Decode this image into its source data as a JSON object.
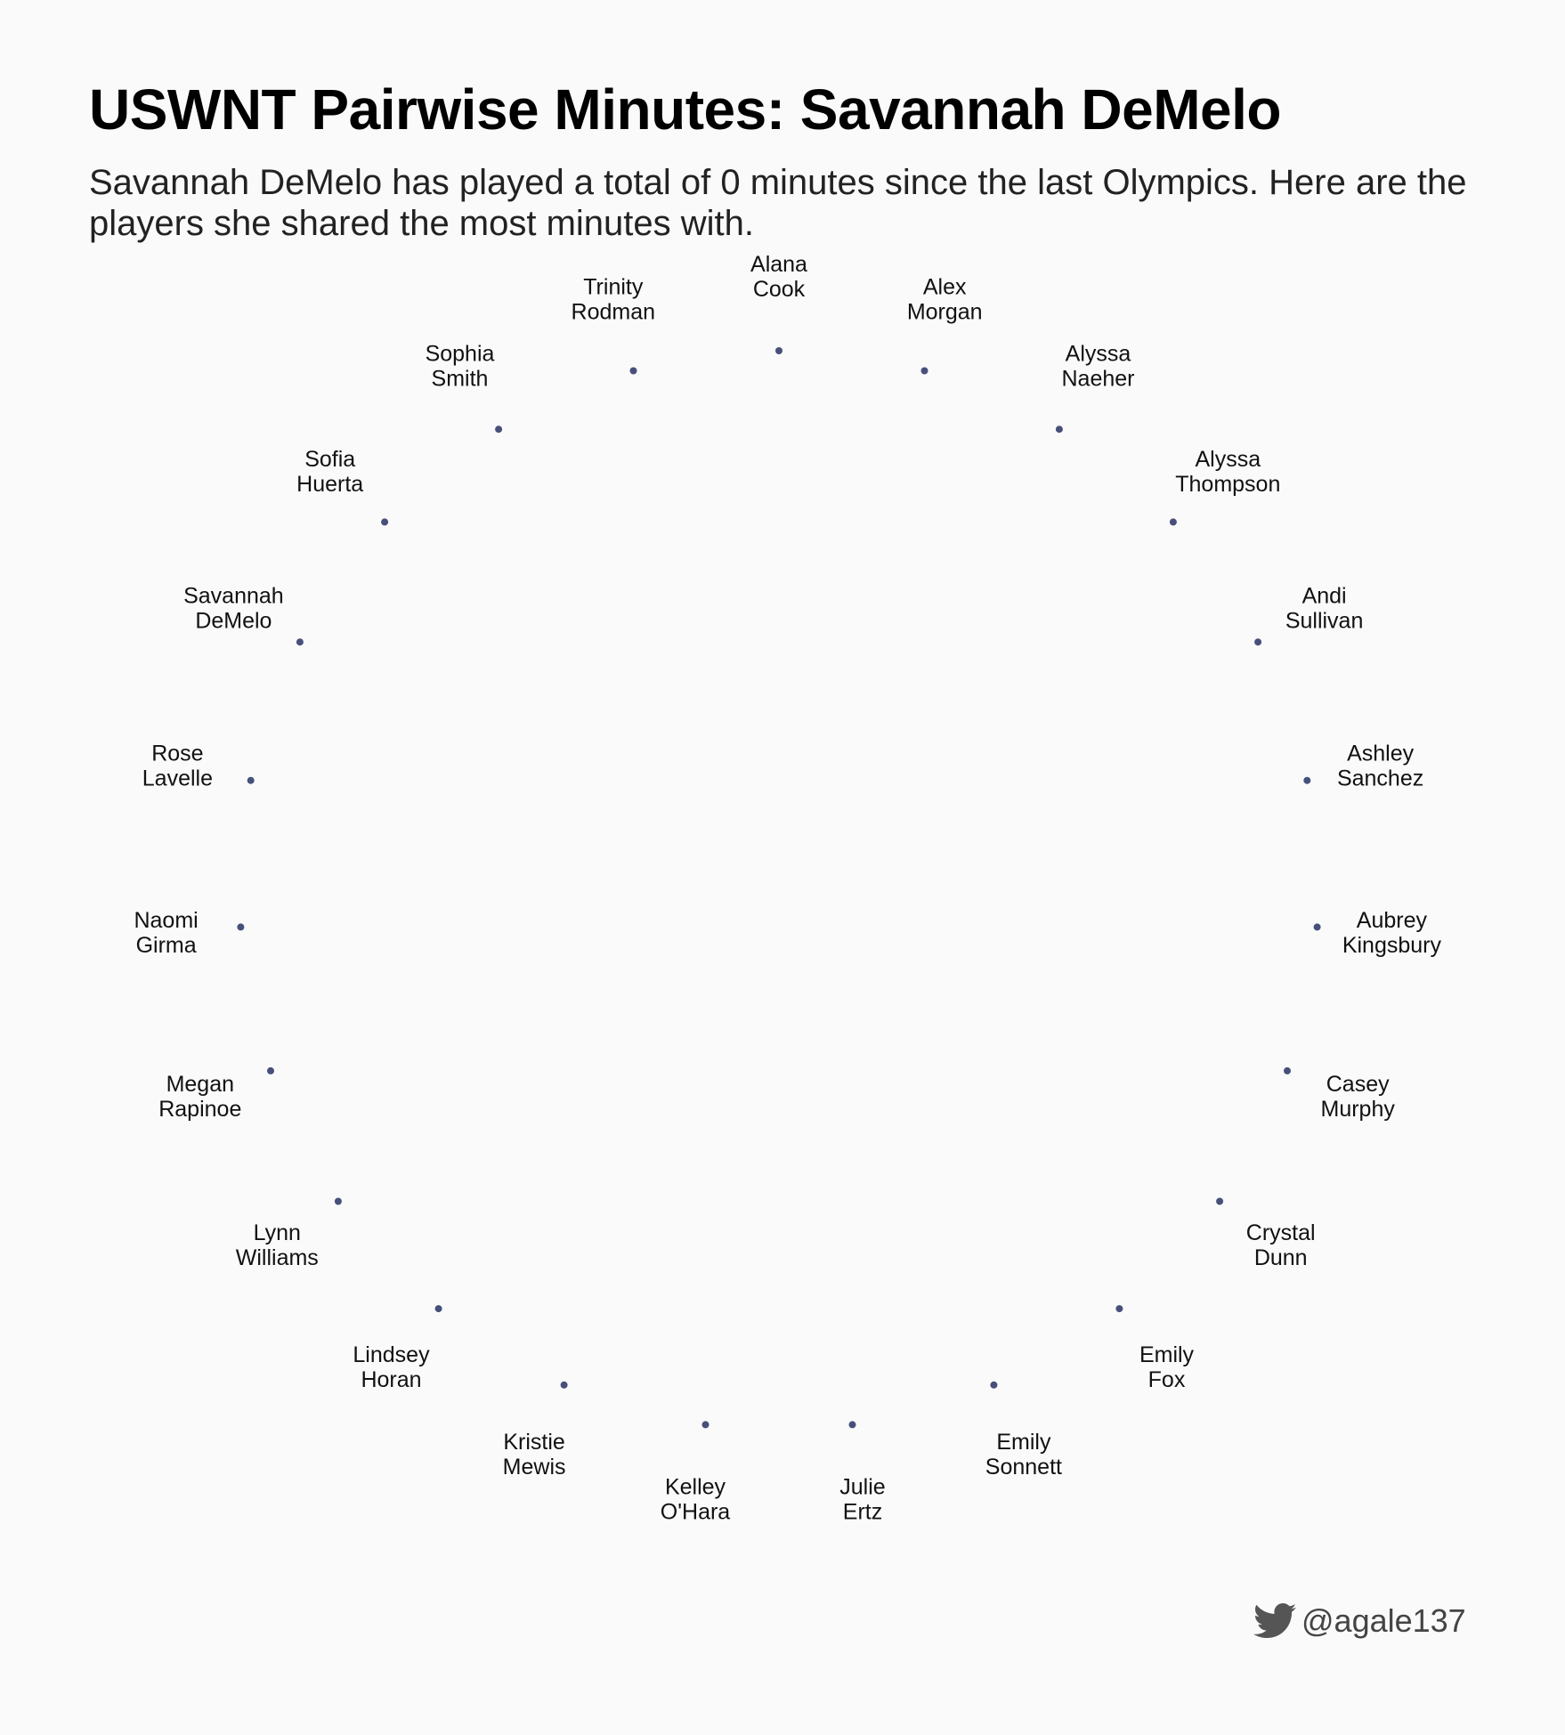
{
  "title": "USWNT Pairwise Minutes: Savannah DeMelo",
  "subtitle": "Savannah DeMelo has played a total of 0 minutes since the last Olympics. Here are the players she shared the most minutes with.",
  "credit": {
    "handle": "@agale137",
    "icon": "twitter-icon"
  },
  "colors": {
    "background": "#fafafa",
    "point": "#46507a",
    "text": "#111111",
    "credit": "#444444"
  },
  "chart_data": {
    "type": "scatter",
    "layout": "radial-network",
    "focus_player": "Savannah DeMelo",
    "total_minutes": 0,
    "connections_shown": 0,
    "nodes": [
      {
        "name": "Alana Cook",
        "line1": "Alana",
        "line2": "Cook"
      },
      {
        "name": "Alex Morgan",
        "line1": "Alex",
        "line2": "Morgan"
      },
      {
        "name": "Alyssa Naeher",
        "line1": "Alyssa",
        "line2": "Naeher"
      },
      {
        "name": "Alyssa Thompson",
        "line1": "Alyssa",
        "line2": "Thompson"
      },
      {
        "name": "Andi Sullivan",
        "line1": "Andi",
        "line2": "Sullivan"
      },
      {
        "name": "Ashley Sanchez",
        "line1": "Ashley",
        "line2": "Sanchez"
      },
      {
        "name": "Aubrey Kingsbury",
        "line1": "Aubrey",
        "line2": "Kingsbury"
      },
      {
        "name": "Casey Murphy",
        "line1": "Casey",
        "line2": "Murphy"
      },
      {
        "name": "Crystal Dunn",
        "line1": "Crystal",
        "line2": "Dunn"
      },
      {
        "name": "Emily Fox",
        "line1": "Emily",
        "line2": "Fox"
      },
      {
        "name": "Emily Sonnett",
        "line1": "Emily",
        "line2": "Sonnett"
      },
      {
        "name": "Julie Ertz",
        "line1": "Julie",
        "line2": "Ertz"
      },
      {
        "name": "Kelley O'Hara",
        "line1": "Kelley",
        "line2": "O'Hara"
      },
      {
        "name": "Kristie Mewis",
        "line1": "Kristie",
        "line2": "Mewis"
      },
      {
        "name": "Lindsey Horan",
        "line1": "Lindsey",
        "line2": "Horan"
      },
      {
        "name": "Lynn Williams",
        "line1": "Lynn",
        "line2": "Williams"
      },
      {
        "name": "Megan Rapinoe",
        "line1": "Megan",
        "line2": "Rapinoe"
      },
      {
        "name": "Naomi Girma",
        "line1": "Naomi",
        "line2": "Girma"
      },
      {
        "name": "Rose Lavelle",
        "line1": "Rose",
        "line2": "Lavelle"
      },
      {
        "name": "Savannah DeMelo",
        "line1": "Savannah",
        "line2": "DeMelo"
      },
      {
        "name": "Sofia Huerta",
        "line1": "Sofia",
        "line2": "Huerta"
      },
      {
        "name": "Sophia Smith",
        "line1": "Sophia",
        "line2": "Smith"
      },
      {
        "name": "Trinity Rodman",
        "line1": "Trinity",
        "line2": "Rodman"
      }
    ]
  }
}
